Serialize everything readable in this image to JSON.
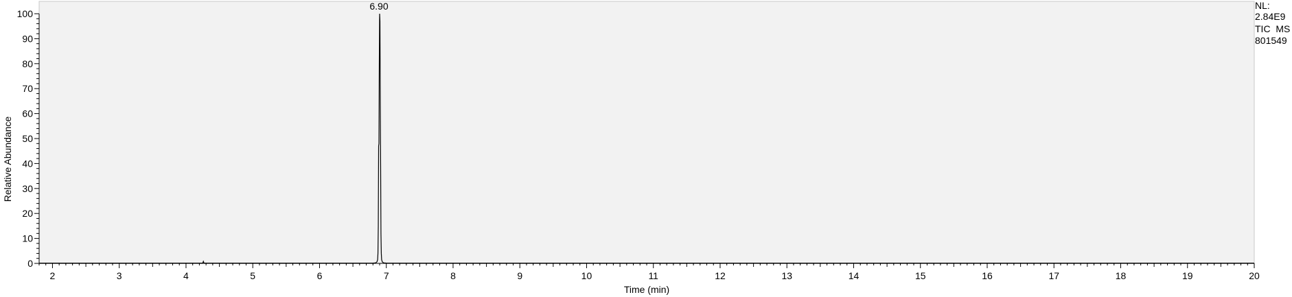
{
  "chart_data": {
    "type": "line",
    "title": "",
    "xlabel": "Time (min)",
    "ylabel": "Relative Abundance",
    "xlim": [
      1.8,
      20
    ],
    "ylim": [
      0,
      100
    ],
    "x_ticks": [
      2,
      3,
      4,
      5,
      6,
      7,
      8,
      9,
      10,
      11,
      12,
      13,
      14,
      15,
      16,
      17,
      18,
      19,
      20
    ],
    "x_tick_labels": [
      "2",
      "3",
      "4",
      "5",
      "6",
      "7",
      "8",
      "9",
      "10",
      "11",
      "12",
      "13",
      "14",
      "15",
      "16",
      "17",
      "18",
      "19",
      "20"
    ],
    "y_ticks": [
      0,
      10,
      20,
      30,
      40,
      50,
      60,
      70,
      80,
      90,
      100
    ],
    "y_tick_labels": [
      "0",
      "10",
      "20",
      "30",
      "40",
      "50",
      "60",
      "70",
      "80",
      "90",
      "100"
    ],
    "grid": false,
    "plot_background": "#f2f2f2",
    "line_color": "#000000",
    "series": [
      {
        "name": "",
        "x": [
          1.8,
          4.0,
          4.25,
          4.26,
          4.27,
          4.5,
          6.8,
          6.84,
          6.86,
          6.87,
          6.875,
          6.88,
          6.885,
          6.89,
          6.895,
          6.9,
          6.905,
          6.91,
          6.915,
          6.92,
          6.925,
          6.93,
          6.94,
          6.96,
          7.0,
          10.0,
          15.0,
          20.0
        ],
        "y": [
          0.1,
          0.1,
          0.1,
          0.8,
          0.1,
          0.1,
          0.1,
          0.2,
          0.6,
          1.5,
          4,
          15,
          47,
          48,
          80,
          100,
          97,
          64,
          40,
          12,
          4,
          1.5,
          0.6,
          0.2,
          0.1,
          0.1,
          0.1,
          0.1
        ]
      }
    ],
    "annotations": [
      {
        "label": "6.90",
        "x": 6.9,
        "y": 100
      }
    ]
  },
  "info_block": {
    "nl_label": "NL:",
    "nl_value": "2.84E9",
    "trace": "TIC  MS",
    "sample_id": "801549"
  }
}
